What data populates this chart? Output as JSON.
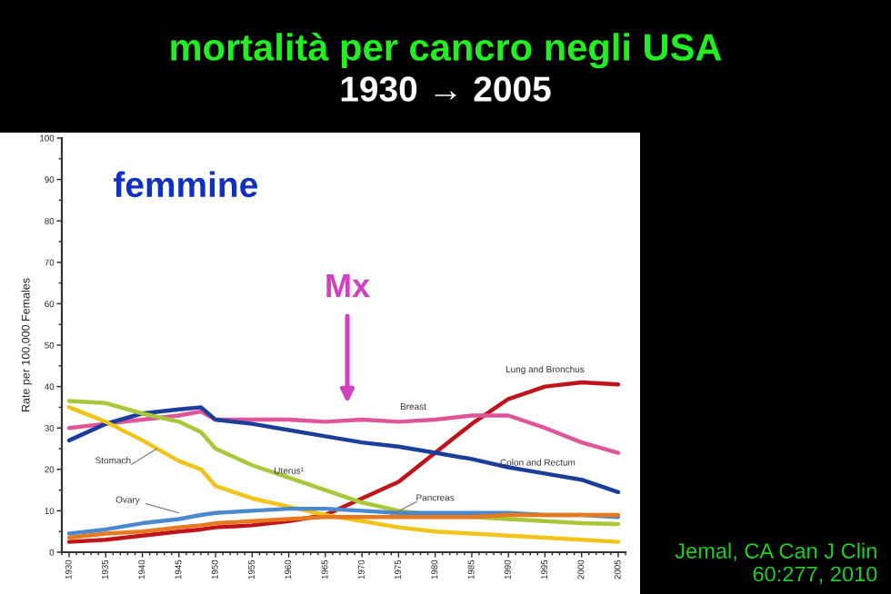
{
  "chart_data": {
    "type": "line",
    "title": "mortalità per cancro negli USA",
    "subtitle": "1930 → 2005",
    "ylabel": "Rate per 100,000 Females",
    "x": [
      1930,
      1935,
      1940,
      1945,
      1948,
      1950,
      1955,
      1960,
      1965,
      1970,
      1975,
      1980,
      1985,
      1990,
      1995,
      2000,
      2005
    ],
    "series": [
      {
        "name": "Lung and Bronchus",
        "color": "#c0141c",
        "values": [
          2.5,
          3,
          4,
          5,
          5.5,
          6,
          6.5,
          7.5,
          9,
          13,
          17,
          24,
          31,
          37,
          40,
          41,
          40.5
        ]
      },
      {
        "name": "Breast",
        "color": "#e0559a",
        "values": [
          30,
          31,
          32,
          33,
          34,
          32,
          32,
          32,
          31.5,
          32,
          31.5,
          32,
          33,
          33,
          30,
          26.5,
          24
        ]
      },
      {
        "name": "Colon and Rectum",
        "color": "#1a3e9a",
        "values": [
          27,
          31,
          33.5,
          34.5,
          35,
          32,
          31,
          29.5,
          28,
          26.5,
          25.5,
          24,
          22.5,
          20.5,
          19,
          17.5,
          14.5
        ]
      },
      {
        "name": "Uterus¹",
        "color": "#a8c83a",
        "values": [
          36.5,
          36,
          33.5,
          31.5,
          29,
          25,
          21,
          18,
          15,
          12,
          10,
          9,
          8.5,
          8,
          7.5,
          7,
          6.8
        ]
      },
      {
        "name": "Stomach",
        "color": "#f2c318",
        "values": [
          35,
          31.5,
          27,
          22,
          20,
          16,
          13,
          11,
          9,
          7.5,
          6,
          5,
          4.5,
          4,
          3.5,
          3,
          2.5
        ]
      },
      {
        "name": "Ovary",
        "color": "#4a88d0",
        "values": [
          4.5,
          5.5,
          7,
          8,
          9,
          9.5,
          10,
          10.5,
          10.5,
          10,
          9.5,
          9.5,
          9.5,
          9.5,
          9,
          9,
          8.5
        ]
      },
      {
        "name": "Pancreas",
        "color": "#e8781e",
        "values": [
          3.5,
          4.5,
          5,
          6,
          6.5,
          7,
          7.5,
          8,
          8.5,
          8.5,
          8.5,
          8.5,
          8.5,
          9,
          9,
          9,
          9
        ]
      }
    ],
    "xlim": [
      1929,
      2006
    ],
    "xticks": [
      1930,
      1935,
      1940,
      1945,
      1950,
      1955,
      1960,
      1965,
      1970,
      1975,
      1980,
      1985,
      1990,
      1995,
      2000,
      2005
    ],
    "ylim": [
      0,
      100
    ],
    "yticks": [
      0,
      10,
      20,
      30,
      40,
      50,
      60,
      70,
      80,
      90,
      100
    ],
    "annotations": [
      "femmine",
      "Mx",
      "Jemal, CA Can J Clin\n60:277, 2010"
    ],
    "grid": false,
    "legend": false,
    "marker": "none",
    "line_style": "solid"
  }
}
